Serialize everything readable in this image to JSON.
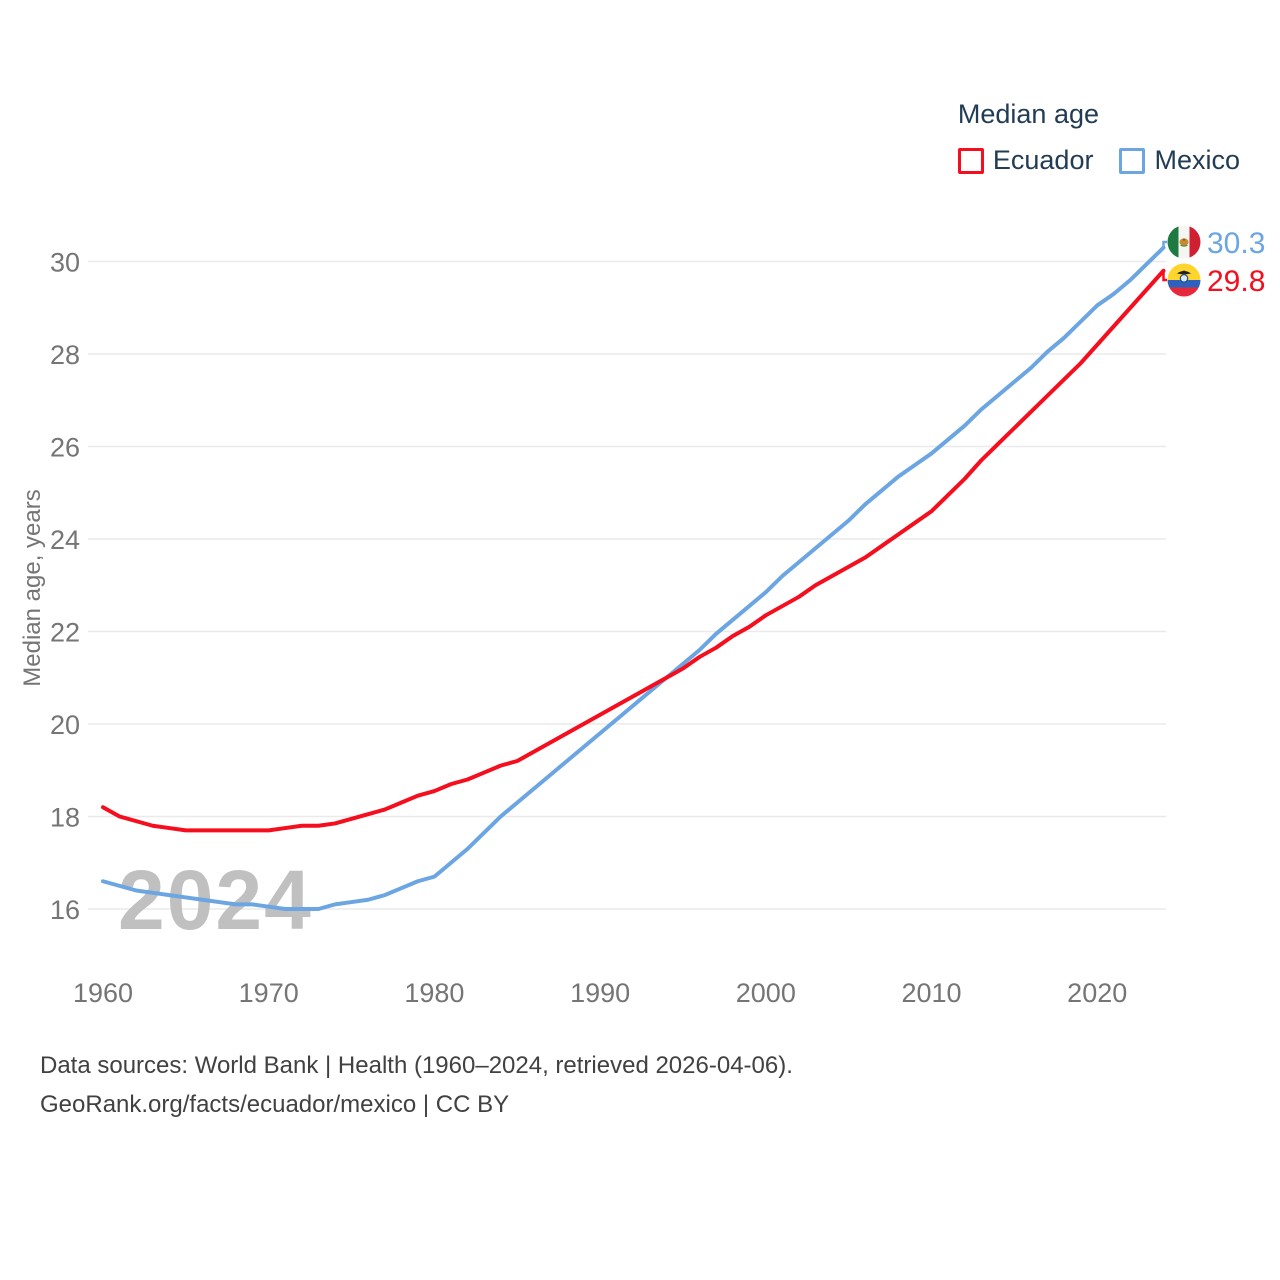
{
  "page": {
    "background": "#ffffff"
  },
  "legend": {
    "title": "Median age",
    "items": [
      {
        "label": "Ecuador"
      },
      {
        "label": "Mexico"
      }
    ]
  },
  "watermark": {
    "text": "2024"
  },
  "source": {
    "line1": "Data sources: World Bank | Health (1960–2024, retrieved 2026-04-06).",
    "line2": "GeoRank.org/facts/ecuador/mexico | CC BY"
  },
  "colors": {
    "ecuador": "#f40e1e",
    "mexico": "#6ba5e2",
    "grid": "#eaeaea",
    "axis_text": "#757575",
    "legend_text": "#223c55",
    "source_text": "#414141",
    "watermark": "#c0c0c0"
  },
  "chart_data": {
    "type": "line",
    "title": "Median age",
    "ylabel": "Median age, years",
    "x_range": [
      1960,
      2024
    ],
    "ylim": [
      15.2,
      30.7
    ],
    "x_ticks": [
      1960,
      1970,
      1980,
      1990,
      2000,
      2010,
      2020
    ],
    "y_ticks": [
      16,
      18,
      20,
      22,
      24,
      26,
      28,
      30
    ],
    "grid": "horizontal-only",
    "legend_position": "top-right",
    "years": [
      1960,
      1961,
      1962,
      1963,
      1964,
      1965,
      1966,
      1967,
      1968,
      1969,
      1970,
      1971,
      1972,
      1973,
      1974,
      1975,
      1976,
      1977,
      1978,
      1979,
      1980,
      1981,
      1982,
      1983,
      1984,
      1985,
      1986,
      1987,
      1988,
      1989,
      1990,
      1991,
      1992,
      1993,
      1994,
      1995,
      1996,
      1997,
      1998,
      1999,
      2000,
      2001,
      2002,
      2003,
      2004,
      2005,
      2006,
      2007,
      2008,
      2009,
      2010,
      2011,
      2012,
      2013,
      2014,
      2015,
      2016,
      2017,
      2018,
      2019,
      2020,
      2021,
      2022,
      2023,
      2024
    ],
    "series": [
      {
        "name": "Ecuador",
        "color": "#f40e1e",
        "end_label": "29.8",
        "end_value": 29.8,
        "values": [
          18.2,
          18.0,
          17.9,
          17.8,
          17.75,
          17.7,
          17.7,
          17.7,
          17.7,
          17.7,
          17.7,
          17.75,
          17.8,
          17.8,
          17.85,
          17.95,
          18.05,
          18.15,
          18.3,
          18.45,
          18.55,
          18.7,
          18.8,
          18.95,
          19.1,
          19.2,
          19.4,
          19.6,
          19.8,
          20.0,
          20.2,
          20.4,
          20.6,
          20.8,
          21.0,
          21.2,
          21.45,
          21.65,
          21.9,
          22.1,
          22.35,
          22.55,
          22.75,
          23.0,
          23.2,
          23.4,
          23.6,
          23.85,
          24.1,
          24.35,
          24.6,
          24.95,
          25.3,
          25.7,
          26.05,
          26.4,
          26.75,
          27.1,
          27.45,
          27.8,
          28.2,
          28.6,
          29.0,
          29.4,
          29.8
        ]
      },
      {
        "name": "Mexico",
        "color": "#6ba5e2",
        "end_label": "30.3",
        "end_value": 30.3,
        "values": [
          16.6,
          16.5,
          16.4,
          16.35,
          16.3,
          16.25,
          16.2,
          16.15,
          16.1,
          16.1,
          16.05,
          16.0,
          16.0,
          16.0,
          16.1,
          16.15,
          16.2,
          16.3,
          16.45,
          16.6,
          16.7,
          17.0,
          17.3,
          17.65,
          18.0,
          18.3,
          18.6,
          18.9,
          19.2,
          19.5,
          19.8,
          20.1,
          20.4,
          20.7,
          21.0,
          21.3,
          21.6,
          21.95,
          22.25,
          22.55,
          22.85,
          23.2,
          23.5,
          23.8,
          24.1,
          24.4,
          24.75,
          25.05,
          25.35,
          25.6,
          25.85,
          26.15,
          26.45,
          26.8,
          27.1,
          27.4,
          27.7,
          28.05,
          28.35,
          28.7,
          29.05,
          29.3,
          29.6,
          29.95,
          30.3
        ]
      }
    ]
  }
}
